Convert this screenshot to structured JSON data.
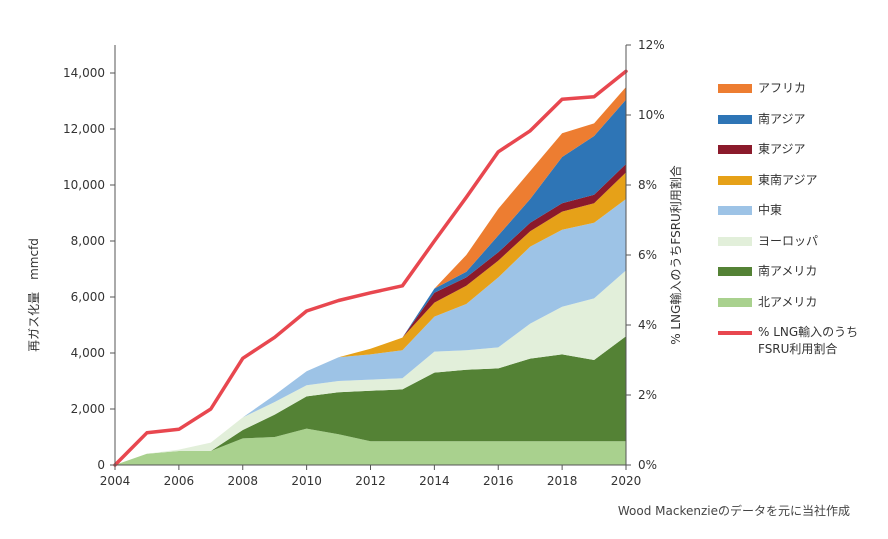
{
  "chart_data": {
    "type": "area",
    "stacked": true,
    "x": [
      2004,
      2005,
      2006,
      2007,
      2008,
      2009,
      2010,
      2011,
      2012,
      2013,
      2014,
      2015,
      2016,
      2017,
      2018,
      2019,
      2020
    ],
    "ylabel_left": "再ガス化量　mmcfd",
    "ylabel_right": "% LNG輸入のうちFSRU利用割合",
    "ylim_left": [
      0,
      15000
    ],
    "ylim_right": [
      0,
      12
    ],
    "yticks_left": [
      "0",
      "2,000",
      "4,000",
      "6,000",
      "8,000",
      "10,000",
      "12,000",
      "14,000"
    ],
    "yticks_left_values": [
      0,
      2000,
      4000,
      6000,
      8000,
      10000,
      12000,
      14000
    ],
    "yticks_right": [
      "0%",
      "2%",
      "4%",
      "6%",
      "8%",
      "10%",
      "12%"
    ],
    "yticks_right_values": [
      0,
      2,
      4,
      6,
      8,
      10,
      12
    ],
    "xticks": [
      "2004",
      "2006",
      "2008",
      "2010",
      "2012",
      "2014",
      "2016",
      "2018",
      "2020"
    ],
    "xticks_values": [
      2004,
      2006,
      2008,
      2010,
      2012,
      2014,
      2016,
      2018,
      2020
    ],
    "series": [
      {
        "name": "北アメリカ",
        "color": "#a9d18e",
        "values": [
          0,
          400,
          500,
          500,
          950,
          1000,
          1300,
          1100,
          850,
          850,
          850,
          850,
          850,
          850,
          850,
          850,
          850
        ]
      },
      {
        "name": "南アメリカ",
        "color": "#548235",
        "values": [
          0,
          0,
          0,
          0,
          300,
          800,
          1150,
          1500,
          1800,
          1850,
          2450,
          2550,
          2600,
          2950,
          3100,
          2900,
          3750
        ]
      },
      {
        "name": "ヨーロッパ",
        "color": "#e2efda",
        "values": [
          0,
          0,
          50,
          300,
          450,
          450,
          400,
          400,
          400,
          400,
          750,
          700,
          750,
          1250,
          1700,
          2200,
          2350
        ]
      },
      {
        "name": "中東",
        "color": "#9dc3e6",
        "values": [
          0,
          0,
          0,
          0,
          0,
          250,
          500,
          850,
          900,
          1000,
          1250,
          1650,
          2500,
          2750,
          2750,
          2700,
          2550
        ]
      },
      {
        "name": "東南アジア",
        "color": "#e6a118",
        "values": [
          0,
          0,
          0,
          0,
          0,
          0,
          0,
          0,
          200,
          450,
          500,
          650,
          600,
          550,
          650,
          700,
          950
        ]
      },
      {
        "name": "東アジア",
        "color": "#8b1a2b",
        "values": [
          0,
          0,
          0,
          0,
          0,
          0,
          0,
          0,
          0,
          0,
          350,
          300,
          300,
          300,
          300,
          300,
          300
        ]
      },
      {
        "name": "南アジア",
        "color": "#2e75b6",
        "values": [
          0,
          0,
          0,
          0,
          0,
          0,
          0,
          0,
          0,
          0,
          150,
          200,
          600,
          850,
          1650,
          2100,
          2300
        ]
      },
      {
        "name": "アフリカ",
        "color": "#ed7d31",
        "values": [
          0,
          0,
          0,
          0,
          0,
          0,
          0,
          0,
          0,
          0,
          0,
          600,
          950,
          1000,
          850,
          450,
          450
        ]
      }
    ],
    "line_series": {
      "name": "% LNG輸入のうちFSRU利用割合",
      "axis": "right",
      "color": "#e8474f",
      "values": [
        0,
        0.92,
        1.02,
        1.6,
        3.05,
        3.65,
        4.4,
        4.7,
        4.92,
        5.12,
        6.4,
        7.65,
        8.95,
        9.55,
        10.45,
        10.52,
        11.25
      ]
    },
    "title": ""
  },
  "legend": {
    "items": [
      {
        "label": "アフリカ",
        "color": "#ed7d31",
        "kind": "area"
      },
      {
        "label": "南アジア",
        "color": "#2e75b6",
        "kind": "area"
      },
      {
        "label": "東アジア",
        "color": "#8b1a2b",
        "kind": "area"
      },
      {
        "label": "東南アジア",
        "color": "#e6a118",
        "kind": "area"
      },
      {
        "label": "中東",
        "color": "#9dc3e6",
        "kind": "area"
      },
      {
        "label": "ヨーロッパ",
        "color": "#e2efda",
        "kind": "area"
      },
      {
        "label": "南アメリカ",
        "color": "#548235",
        "kind": "area"
      },
      {
        "label": "北アメリカ",
        "color": "#a9d18e",
        "kind": "area"
      },
      {
        "label": "% LNG輸入のうち\nFSRU利用割合",
        "color": "#e8474f",
        "kind": "line"
      }
    ]
  },
  "source": "Wood Mackenzieのデータを元に当社作成"
}
